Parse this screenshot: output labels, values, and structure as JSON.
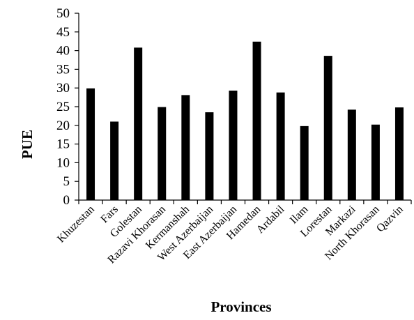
{
  "chart_data": {
    "type": "bar",
    "title": "",
    "xlabel": "Provinces",
    "ylabel": "PUE",
    "ylim": [
      0,
      50
    ],
    "yticks": [
      0,
      5,
      10,
      15,
      20,
      25,
      30,
      35,
      40,
      45,
      50
    ],
    "grid": false,
    "bar_color": "#000000",
    "categories": [
      "Khuzestan",
      "Fars",
      "Golestan",
      "Razavi Khorasan",
      "Kermanshah",
      "West Azerbaijan",
      "East Azerbaijan",
      "Hamedan",
      "Ardabil",
      "Ilam",
      "Lorestan",
      "Markazi",
      "North Khorasan",
      "Qazvin"
    ],
    "values": [
      29.9,
      21.0,
      40.8,
      24.9,
      28.1,
      23.5,
      29.3,
      42.4,
      28.8,
      19.8,
      38.6,
      24.2,
      20.2,
      24.8
    ]
  }
}
